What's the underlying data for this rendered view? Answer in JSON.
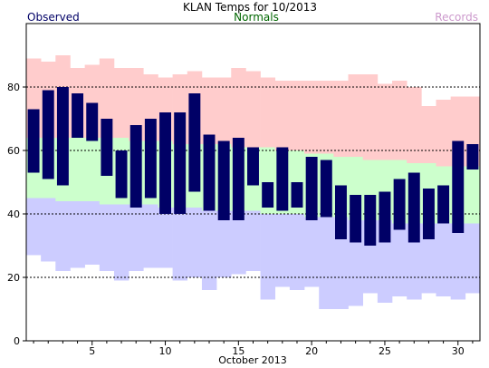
{
  "chart_data": {
    "type": "bar",
    "title": "KLAN Temps for 10/2013",
    "xlabel": "October 2013",
    "ylabel": "",
    "legend": {
      "observed": "Observed",
      "normals": "Normals",
      "records": "Records",
      "observed_color": "#000066",
      "normals_color": "#006600",
      "records_color": "#cc99cc"
    },
    "colors": {
      "observed_bar": "#000066",
      "normal_band": "#ccffcc",
      "record_high_band": "#ffcccc",
      "record_low_band": "#ccccff"
    },
    "ylim": [
      0,
      100
    ],
    "yticks": [
      0,
      20,
      40,
      60,
      80
    ],
    "xlim": [
      0.5,
      31.5
    ],
    "xticks": [
      5,
      10,
      15,
      20,
      25,
      30
    ],
    "grid": "horizontal dashed at 20, 40, 60, 80",
    "days": [
      1,
      2,
      3,
      4,
      5,
      6,
      7,
      8,
      9,
      10,
      11,
      12,
      13,
      14,
      15,
      16,
      17,
      18,
      19,
      20,
      21,
      22,
      23,
      24,
      25,
      26,
      27,
      28,
      29,
      30,
      31
    ],
    "series": [
      {
        "name": "Observed",
        "high": [
          73,
          79,
          80,
          78,
          75,
          70,
          60,
          68,
          70,
          72,
          72,
          78,
          65,
          63,
          64,
          61,
          50,
          61,
          50,
          58,
          57,
          49,
          46,
          46,
          47,
          51,
          53,
          48,
          49,
          63,
          62
        ],
        "low": [
          53,
          51,
          49,
          64,
          63,
          52,
          45,
          42,
          45,
          40,
          40,
          47,
          41,
          38,
          38,
          49,
          42,
          41,
          42,
          38,
          39,
          32,
          31,
          30,
          31,
          35,
          31,
          32,
          37,
          34,
          54
        ]
      },
      {
        "name": "Normals",
        "high": [
          64,
          64,
          64,
          64,
          64,
          64,
          64,
          63,
          63,
          63,
          62,
          62,
          62,
          62,
          61,
          61,
          61,
          60,
          60,
          59,
          59,
          58,
          58,
          57,
          57,
          57,
          56,
          56,
          55,
          55,
          55
        ],
        "low": [
          45,
          45,
          44,
          44,
          44,
          43,
          43,
          43,
          43,
          42,
          42,
          42,
          41,
          41,
          41,
          41,
          40,
          40,
          40,
          39,
          39,
          39,
          38,
          38,
          38,
          37,
          37,
          37,
          37,
          37,
          37
        ]
      },
      {
        "name": "Records",
        "high": [
          89,
          88,
          90,
          86,
          87,
          89,
          86,
          86,
          84,
          83,
          84,
          85,
          83,
          83,
          86,
          85,
          83,
          82,
          82,
          82,
          82,
          82,
          84,
          84,
          81,
          82,
          80,
          74,
          76,
          77,
          77
        ],
        "low": [
          27,
          25,
          22,
          23,
          24,
          22,
          19,
          22,
          23,
          23,
          19,
          20,
          16,
          20,
          21,
          22,
          13,
          17,
          16,
          17,
          10,
          10,
          11,
          15,
          12,
          14,
          13,
          15,
          14,
          13,
          15
        ]
      }
    ]
  }
}
